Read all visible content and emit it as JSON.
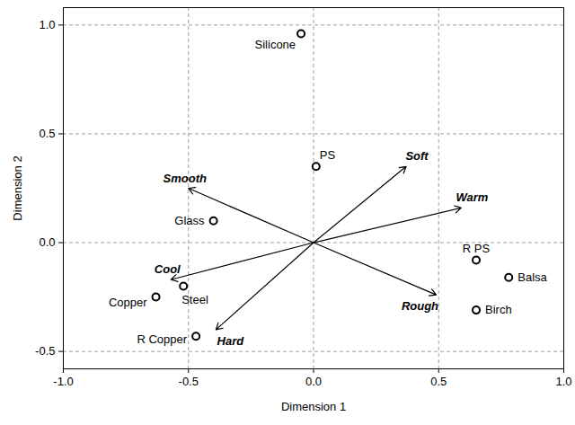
{
  "chart_data": {
    "type": "scatter",
    "x_label": "Dimension 1",
    "y_label": "Dimension 2",
    "xlim": [
      -1.0,
      1.0
    ],
    "ylim": [
      -0.58,
      1.08
    ],
    "xticks": [
      {
        "value": -1.0,
        "label": "-1.0"
      },
      -0.5,
      {
        "value": 0,
        "label": "0.0"
      },
      0.5,
      {
        "value": 1.0,
        "label": "1.0"
      }
    ],
    "yticks": [
      -0.5,
      {
        "value": 0,
        "label": "0.0"
      },
      0.5,
      {
        "value": 1.0,
        "label": "1.0"
      }
    ],
    "grid": true,
    "marker": "circle",
    "color": "#000000",
    "points": [
      {
        "label": "Silicone",
        "x": -0.05,
        "y": 0.96
      },
      {
        "label": "PS",
        "x": 0.01,
        "y": 0.35
      },
      {
        "label": "Glass",
        "x": -0.4,
        "y": 0.1
      },
      {
        "label": "Steel",
        "x": -0.52,
        "y": -0.2
      },
      {
        "label": "Copper",
        "x": -0.63,
        "y": -0.25
      },
      {
        "label": "R Copper",
        "x": -0.47,
        "y": -0.43
      },
      {
        "label": "R PS",
        "x": 0.65,
        "y": -0.08
      },
      {
        "label": "Balsa",
        "x": 0.78,
        "y": -0.16
      },
      {
        "label": "Birch",
        "x": 0.65,
        "y": -0.31
      }
    ],
    "vectors": [
      {
        "label": "Smooth",
        "x": -0.5,
        "y": 0.25
      },
      {
        "label": "Soft",
        "x": 0.37,
        "y": 0.35
      },
      {
        "label": "Warm",
        "x": 0.59,
        "y": 0.16
      },
      {
        "label": "Cool",
        "x": -0.57,
        "y": -0.17
      },
      {
        "label": "Hard",
        "x": -0.39,
        "y": -0.4
      },
      {
        "label": "Rough",
        "x": 0.49,
        "y": -0.24
      }
    ]
  }
}
